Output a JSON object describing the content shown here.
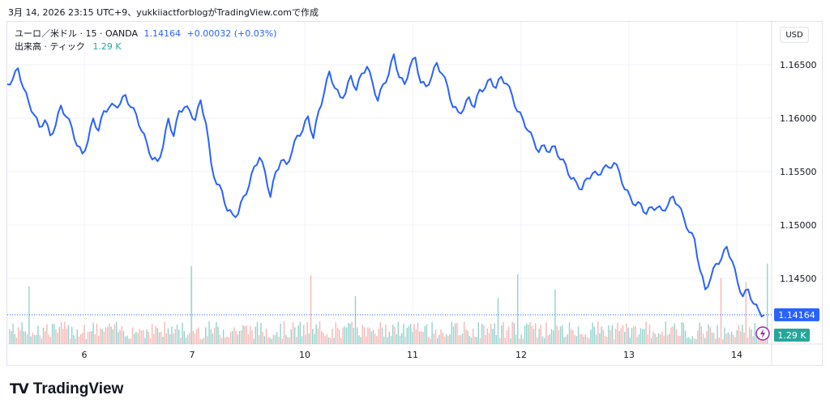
{
  "header": {
    "note": "3月 14, 2026 23:15 UTC+9、yukkiiactforblogがTradingView.comで作成"
  },
  "legend": {
    "symbol": "ユーロ／米ドル · 15 · OANDA",
    "price": "1.14164",
    "change": "+0.00032 (+0.03%)",
    "volume_label": "出来高 · ティック",
    "volume_value": "1.29 K"
  },
  "currency_button": "USD",
  "brand": {
    "logo": "TV",
    "name": "TradingView"
  },
  "colors": {
    "price_line": "#2962ff",
    "vol_up": "#80cbc4",
    "vol_down": "#f7a9a7",
    "vol_badge": "#26a69a",
    "grid": "#f0f3fa"
  },
  "chart_data": {
    "type": "line",
    "x_tick_labels": [
      "6",
      "7",
      "10",
      "11",
      "12",
      "13",
      "14"
    ],
    "y_tick_labels": [
      "1.16500",
      "1.16000",
      "1.15500",
      "1.15000",
      "1.14500"
    ],
    "ylim": [
      1.139,
      1.168
    ],
    "last_price_label": "1.14164",
    "last_volume_label": "1.29 K",
    "series": [
      {
        "values": [
          1.163,
          1.1638,
          1.1645,
          1.163,
          1.1613,
          1.1605,
          1.159,
          1.16,
          1.1582,
          1.1595,
          1.161,
          1.1603,
          1.159,
          1.1576,
          1.1565,
          1.158,
          1.1598,
          1.159,
          1.1605,
          1.1612,
          1.161,
          1.1615,
          1.162,
          1.1612,
          1.1602,
          1.159,
          1.1575,
          1.1563,
          1.1558,
          1.1575,
          1.1598,
          1.1585,
          1.1605,
          1.1612,
          1.1605,
          1.16,
          1.1615,
          1.1597,
          1.1555,
          1.154,
          1.153,
          1.1515,
          1.1508,
          1.1512,
          1.1525,
          1.1538,
          1.1553,
          1.1565,
          1.1548,
          1.1528,
          1.1548,
          1.1562,
          1.1555,
          1.157,
          1.1582,
          1.159,
          1.16,
          1.1583,
          1.1605,
          1.1625,
          1.1642,
          1.163,
          1.1618,
          1.1625,
          1.1638,
          1.1628,
          1.164,
          1.165,
          1.1632,
          1.1618,
          1.163,
          1.1642,
          1.1658,
          1.164,
          1.163,
          1.165,
          1.1655,
          1.1635,
          1.1628,
          1.164,
          1.165,
          1.1643,
          1.1628,
          1.1612,
          1.1604,
          1.161,
          1.1618,
          1.1612,
          1.1625,
          1.163,
          1.1635,
          1.163,
          1.1637,
          1.1634,
          1.162,
          1.1608,
          1.1598,
          1.159,
          1.1578,
          1.157,
          1.1573,
          1.157,
          1.1572,
          1.1563,
          1.1555,
          1.1545,
          1.1538,
          1.1535,
          1.1542,
          1.155,
          1.1545,
          1.1555,
          1.1552,
          1.156,
          1.1548,
          1.1535,
          1.1525,
          1.152,
          1.1518,
          1.1512,
          1.1515,
          1.1518,
          1.1512,
          1.152,
          1.1525,
          1.152,
          1.1505,
          1.1495,
          1.1485,
          1.146,
          1.1438,
          1.1452,
          1.1462,
          1.147,
          1.1478,
          1.1468,
          1.1445,
          1.1435,
          1.1438,
          1.1428,
          1.1418,
          1.1416
        ]
      }
    ]
  }
}
